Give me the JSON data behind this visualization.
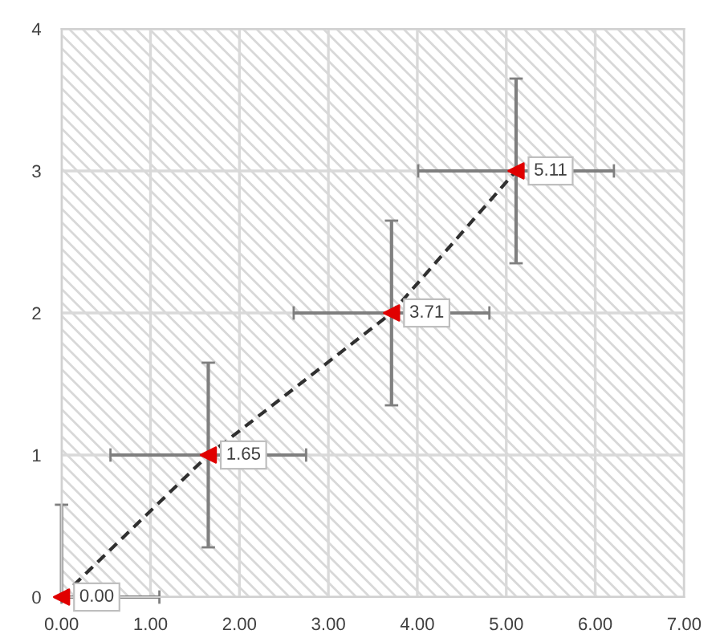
{
  "chart_data": {
    "type": "scatter",
    "x": [
      0.0,
      1.65,
      3.71,
      5.11
    ],
    "values": [
      0,
      1,
      2,
      3
    ],
    "color": "#e00000",
    "errors": [
      [
        0,
        0.65
      ],
      0.65,
      0.65,
      0.65
    ],
    "xerrors": [
      [
        0,
        1.1
      ],
      1.1,
      1.1,
      1.1
    ],
    "annotations": [
      {
        "text": "0.00",
        "x": 0.0,
        "y": 0
      },
      {
        "text": "1.65",
        "x": 1.65,
        "y": 1
      },
      {
        "text": "3.71",
        "x": 3.71,
        "y": 2
      },
      {
        "text": "5.11",
        "x": 5.11,
        "y": 3
      }
    ],
    "xlim": [
      0,
      7
    ],
    "ylim": [
      0,
      4
    ],
    "xticks": [
      {
        "value": 0,
        "label": "0.00"
      },
      {
        "value": 1,
        "label": "1.00"
      },
      {
        "value": 2,
        "label": "2.00"
      },
      {
        "value": 3,
        "label": "3.00"
      },
      {
        "value": 4,
        "label": "4.00"
      },
      {
        "value": 5,
        "label": "5.00"
      },
      {
        "value": 6,
        "label": "6.00"
      },
      {
        "value": 7,
        "label": "7.00"
      }
    ],
    "yticks": [
      0,
      1,
      2,
      3,
      4
    ],
    "grid": true,
    "marker": "triangle",
    "line_style": "dashed"
  }
}
